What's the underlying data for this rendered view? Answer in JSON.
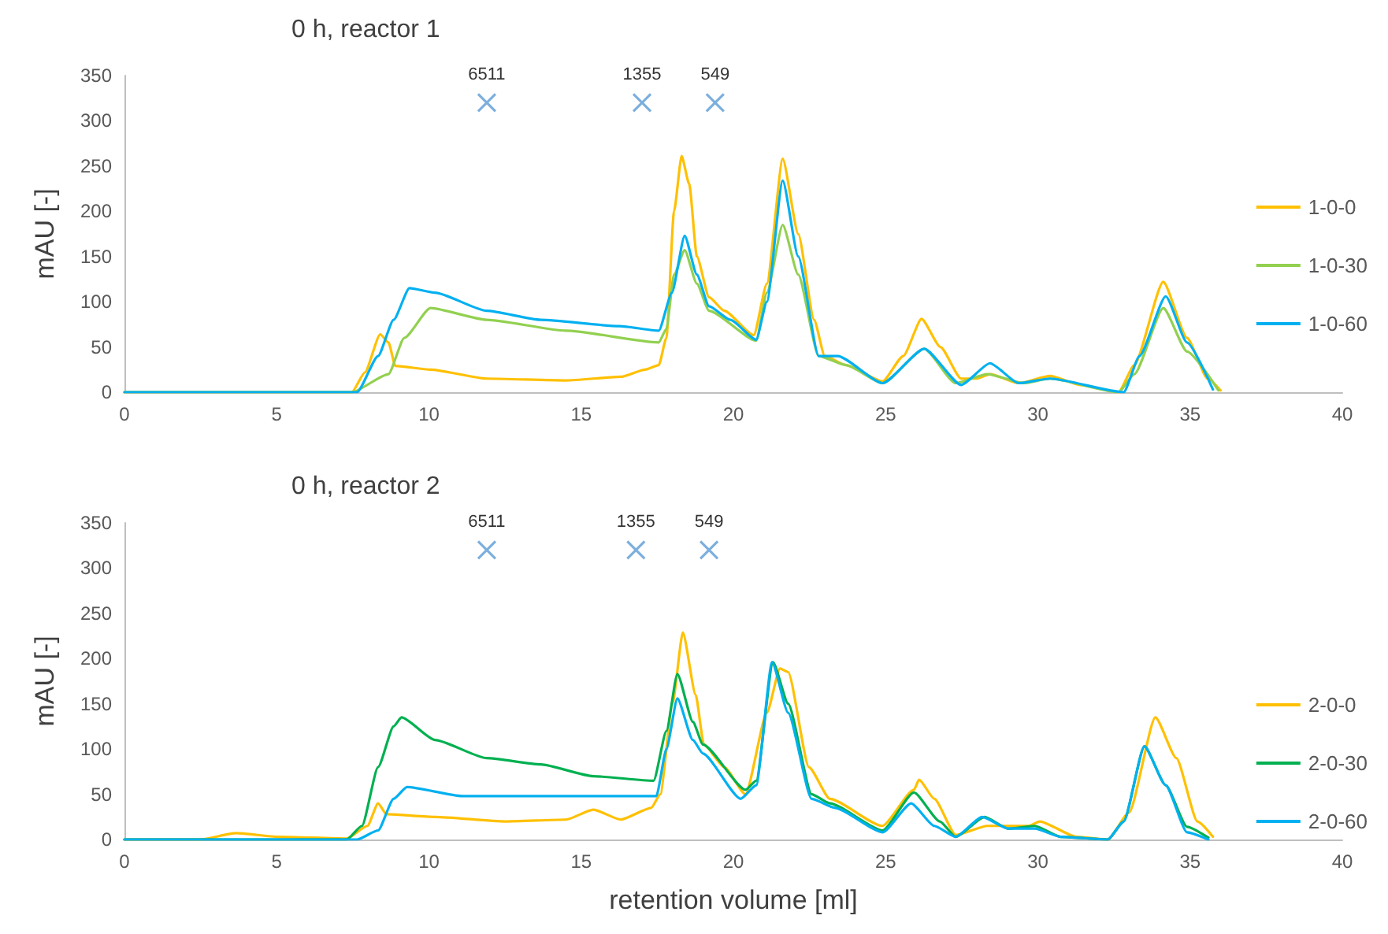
{
  "chart_data": [
    {
      "type": "line",
      "title": "0 h, reactor 1",
      "ylabel": "mAU [-]",
      "xlim": [
        0,
        40
      ],
      "xticks": [
        0,
        5,
        10,
        15,
        20,
        25,
        30,
        35,
        40
      ],
      "ylim": [
        0,
        350
      ],
      "yticks": [
        0,
        50,
        100,
        150,
        200,
        250,
        300,
        350
      ],
      "grid": false,
      "legend": "right",
      "marker": "none",
      "line_style": "solid",
      "series": [
        {
          "name": "1-0-0",
          "color": "#ffc000",
          "x": [
            0,
            7.47,
            7.9,
            8.4,
            8.67,
            8.9,
            10.05,
            11.9,
            14.5,
            16.3,
            17.1,
            17.55,
            17.8,
            18.05,
            18.3,
            18.55,
            18.8,
            19.2,
            19.7,
            20.67,
            21.1,
            21.62,
            22.13,
            22.65,
            23.0,
            23.7,
            24.9,
            25.58,
            26.18,
            26.8,
            27.48,
            28.0,
            28.43,
            29.37,
            30.4,
            31.4,
            32.65,
            33.17,
            34.12,
            34.9,
            35.58,
            36.0
          ],
          "values": [
            0,
            0,
            22,
            64,
            55,
            29,
            25,
            15,
            13,
            17,
            25,
            30,
            60,
            200,
            261,
            230,
            150,
            105,
            90,
            63,
            120,
            258,
            175,
            80,
            40,
            30,
            12,
            40,
            81,
            50,
            15,
            15,
            20,
            10,
            18,
            8,
            0,
            30,
            122,
            60,
            15,
            2
          ]
        },
        {
          "name": "1-0-30",
          "color": "#92d050",
          "x": [
            0,
            7.47,
            8.67,
            9.19,
            10.05,
            11.9,
            14.5,
            17.55,
            17.8,
            18.05,
            18.4,
            18.8,
            19.2,
            20.75,
            21.1,
            21.62,
            22.13,
            22.8,
            23.7,
            24.9,
            26.27,
            27.3,
            28.34,
            29.54,
            30.4,
            32.65,
            33.17,
            34.12,
            34.9,
            35.93
          ],
          "values": [
            0,
            0,
            20,
            60,
            93,
            80,
            68,
            55,
            70,
            130,
            157,
            120,
            90,
            57,
            110,
            185,
            130,
            40,
            30,
            10,
            48,
            10,
            20,
            10,
            15,
            0,
            20,
            93,
            45,
            2
          ]
        },
        {
          "name": "1-0-60",
          "color": "#00b0f0",
          "x": [
            0,
            7.64,
            8.33,
            8.84,
            9.36,
            10.2,
            11.9,
            13.67,
            16.26,
            17.55,
            17.98,
            18.4,
            18.8,
            19.2,
            19.9,
            20.75,
            21.1,
            21.62,
            22.13,
            22.8,
            23.43,
            24.9,
            26.27,
            27.48,
            28.43,
            29.37,
            30.4,
            32.82,
            33.34,
            34.2,
            34.9,
            35.75
          ],
          "values": [
            0,
            0,
            40,
            80,
            115,
            110,
            90,
            80,
            73,
            68,
            110,
            173,
            130,
            95,
            80,
            58,
            100,
            234,
            150,
            40,
            40,
            10,
            48,
            8,
            32,
            10,
            15,
            0,
            40,
            106,
            55,
            3
          ]
        },
        {
          "type": "scatter",
          "color": "#5b9bd5",
          "x": [
            11.9,
            17.0,
            19.4
          ],
          "values": [
            320,
            320,
            320
          ],
          "marker": "cross"
        }
      ],
      "annotations": [
        {
          "text": "6511",
          "x": 11.9,
          "y": 320
        },
        {
          "text": "1355",
          "x": 17.0,
          "y": 320
        },
        {
          "text": "549",
          "x": 19.4,
          "y": 320
        }
      ]
    },
    {
      "type": "line",
      "title": "0 h, reactor 2",
      "xlabel": "retention volume [ml]",
      "ylabel": "mAU [-]",
      "xlim": [
        0,
        40
      ],
      "xticks": [
        0,
        5,
        10,
        15,
        20,
        25,
        30,
        35,
        40
      ],
      "ylim": [
        0,
        350
      ],
      "yticks": [
        0,
        50,
        100,
        150,
        200,
        250,
        300,
        350
      ],
      "grid": false,
      "legend": "right",
      "marker": "none",
      "line_style": "solid",
      "series": [
        {
          "name": "2-0-0",
          "color": "#ffc000",
          "x": [
            0,
            2.47,
            3.67,
            5.05,
            7.3,
            7.98,
            8.33,
            8.6,
            10.2,
            12.5,
            14.5,
            15.4,
            16.3,
            17.3,
            17.6,
            18.0,
            18.34,
            18.76,
            19.03,
            19.7,
            20.4,
            21.1,
            21.53,
            21.8,
            22.48,
            23.17,
            24.89,
            25.93,
            26.1,
            26.6,
            27.3,
            28.34,
            29.7,
            30.06,
            31.27,
            32.3,
            33.0,
            33.86,
            34.55,
            35.24,
            35.75
          ],
          "values": [
            0,
            0,
            7,
            3,
            1,
            15,
            40,
            28,
            25,
            20,
            22,
            33,
            22,
            35,
            50,
            150,
            229,
            160,
            105,
            80,
            50,
            140,
            189,
            185,
            80,
            45,
            15,
            55,
            66,
            45,
            5,
            15,
            15,
            20,
            3,
            0,
            30,
            135,
            90,
            20,
            3
          ]
        },
        {
          "name": "2-0-30",
          "color": "#00b050",
          "x": [
            0,
            7.3,
            7.8,
            8.33,
            8.84,
            9.1,
            10.2,
            11.9,
            13.67,
            15.4,
            17.38,
            17.8,
            18.16,
            18.67,
            19.0,
            20.4,
            20.75,
            21.3,
            21.8,
            22.57,
            23.17,
            24.9,
            25.93,
            26.78,
            27.3,
            28.25,
            29.03,
            29.9,
            30.75,
            32.3,
            32.82,
            33.5,
            34.2,
            34.9,
            35.6
          ],
          "values": [
            0,
            0,
            15,
            80,
            125,
            135,
            110,
            90,
            83,
            70,
            65,
            120,
            183,
            130,
            105,
            55,
            65,
            196,
            150,
            50,
            40,
            10,
            52,
            20,
            3,
            25,
            12,
            15,
            3,
            0,
            20,
            103,
            60,
            14,
            2
          ]
        },
        {
          "name": "2-0-60",
          "color": "#00b0f0",
          "x": [
            0,
            7.64,
            8.33,
            8.84,
            9.28,
            11.1,
            13.67,
            16.26,
            17.47,
            17.8,
            18.16,
            18.67,
            19.0,
            20.24,
            20.75,
            21.27,
            21.8,
            22.57,
            23.34,
            24.9,
            25.84,
            26.6,
            27.3,
            28.17,
            29.03,
            29.9,
            30.75,
            32.3,
            32.82,
            33.5,
            34.2,
            34.9,
            35.6
          ],
          "values": [
            0,
            0,
            10,
            45,
            58,
            48,
            48,
            48,
            48,
            100,
            156,
            110,
            95,
            45,
            60,
            196,
            140,
            45,
            35,
            8,
            40,
            15,
            3,
            25,
            12,
            12,
            3,
            0,
            20,
            103,
            60,
            8,
            0
          ]
        },
        {
          "type": "scatter",
          "color": "#5b9bd5",
          "x": [
            11.9,
            16.8,
            19.2
          ],
          "values": [
            320,
            320,
            320
          ],
          "marker": "cross"
        }
      ],
      "annotations": [
        {
          "text": "6511",
          "x": 11.9,
          "y": 320
        },
        {
          "text": "1355",
          "x": 16.8,
          "y": 320
        },
        {
          "text": "549",
          "x": 19.2,
          "y": 320
        }
      ]
    }
  ]
}
